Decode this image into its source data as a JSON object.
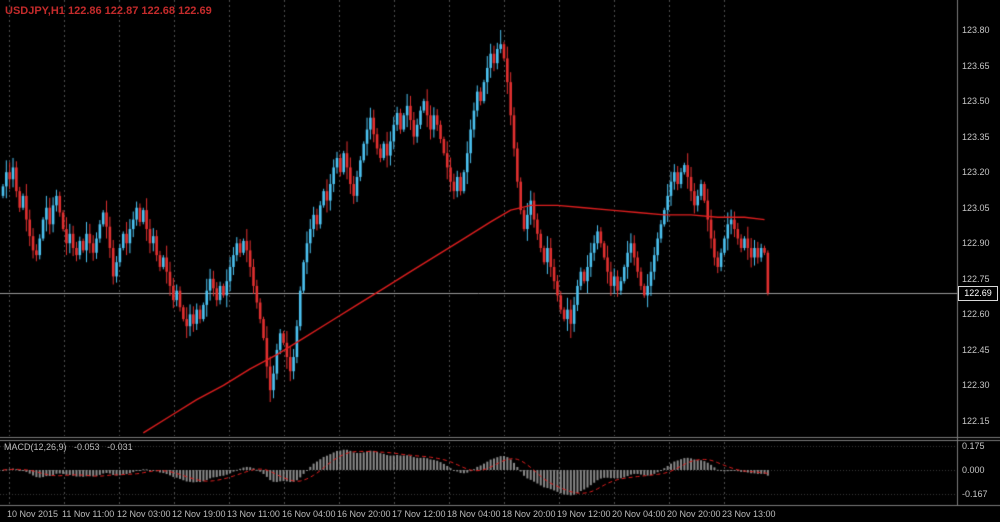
{
  "header": {
    "readout": "USDJPY,H1 122.86 122.87 122.68 122.69",
    "symbol": "USDJPY",
    "timeframe": "H1",
    "open": "122.86",
    "high": "122.87",
    "low": "122.68",
    "close": "122.69"
  },
  "colors": {
    "background": "#000000",
    "bull": "#4cc2f1",
    "bear": "#e23030",
    "ma_line": "#e01f1f",
    "grid": "#4f4f4f",
    "dotted_level": "#3a3a3a",
    "axis_text": "#c6c6c6",
    "header_text": "#c42b2b",
    "histogram": "#8a8a8a",
    "signal_line": "#e01f1f",
    "price_line": "#9a9a9a",
    "separator": "#7b7b7b"
  },
  "chart_data": {
    "type": "candlestick",
    "symbol": "USDJPY",
    "timeframe": "H1",
    "title": "USDJPY,H1",
    "current_price": "122.69",
    "price_line_value": 122.69,
    "y_ticks": [
      "123.80",
      "123.65",
      "123.50",
      "123.35",
      "123.20",
      "123.05",
      "122.90",
      "122.75",
      "122.60",
      "122.45",
      "122.30",
      "122.15"
    ],
    "y_range": [
      122.15,
      123.8
    ],
    "x_labels": [
      "10 Nov 2015",
      "11 Nov 11:00",
      "12 Nov 03:00",
      "12 Nov 19:00",
      "13 Nov 11:00",
      "16 Nov 04:00",
      "16 Nov 20:00",
      "17 Nov 12:00",
      "18 Nov 04:00",
      "18 Nov 20:00",
      "19 Nov 12:00",
      "20 Nov 04:00",
      "20 Nov 20:00",
      "23 Nov 13:00"
    ],
    "closes": [
      123.14,
      123.2,
      123.17,
      123.22,
      123.12,
      123.05,
      123.1,
      123.0,
      122.93,
      122.87,
      122.85,
      122.92,
      123.0,
      123.05,
      122.98,
      123.06,
      123.1,
      123.03,
      122.96,
      122.9,
      122.94,
      122.88,
      122.85,
      122.91,
      122.87,
      122.94,
      122.9,
      122.86,
      122.92,
      122.98,
      123.03,
      122.97,
      122.88,
      122.76,
      122.82,
      122.88,
      122.94,
      122.9,
      122.96,
      123.0,
      123.05,
      122.99,
      123.04,
      122.96,
      122.9,
      122.93,
      122.85,
      122.8,
      122.84,
      122.78,
      122.72,
      122.66,
      122.7,
      122.63,
      122.58,
      122.55,
      122.6,
      122.56,
      122.62,
      122.58,
      122.64,
      122.7,
      122.75,
      122.71,
      122.66,
      122.72,
      122.68,
      122.74,
      122.8,
      122.85,
      122.9,
      122.86,
      122.91,
      122.87,
      122.8,
      122.72,
      122.65,
      122.58,
      122.5,
      122.38,
      122.28,
      122.35,
      122.45,
      122.52,
      122.48,
      122.42,
      122.36,
      122.42,
      122.55,
      122.7,
      122.82,
      122.9,
      122.96,
      123.02,
      122.98,
      123.06,
      123.12,
      123.08,
      123.15,
      123.22,
      123.26,
      123.2,
      123.28,
      123.22,
      123.15,
      123.1,
      123.18,
      123.25,
      123.32,
      123.38,
      123.43,
      123.36,
      123.3,
      123.26,
      123.32,
      123.27,
      123.33,
      123.4,
      123.45,
      123.38,
      123.44,
      123.48,
      123.42,
      123.35,
      123.4,
      123.46,
      123.5,
      123.44,
      123.38,
      123.44,
      123.4,
      123.34,
      123.28,
      123.22,
      123.16,
      123.12,
      123.18,
      123.12,
      123.2,
      123.28,
      123.38,
      123.46,
      123.54,
      123.5,
      123.58,
      123.64,
      123.7,
      123.66,
      123.72,
      123.74,
      123.68,
      123.58,
      123.44,
      123.3,
      123.16,
      123.04,
      122.96,
      123.02,
      123.08,
      123.0,
      122.94,
      122.88,
      122.82,
      122.88,
      122.8,
      122.74,
      122.68,
      122.62,
      122.58,
      122.62,
      122.56,
      122.64,
      122.72,
      122.78,
      122.74,
      122.8,
      122.86,
      122.9,
      122.95,
      122.9,
      122.84,
      122.78,
      122.72,
      122.76,
      122.7,
      122.74,
      122.8,
      122.86,
      122.9,
      122.84,
      122.78,
      122.72,
      122.68,
      122.72,
      122.78,
      122.85,
      122.92,
      122.98,
      123.04,
      123.1,
      123.16,
      123.2,
      123.15,
      123.2,
      123.23,
      123.18,
      123.12,
      123.06,
      123.1,
      123.15,
      123.08,
      123.0,
      122.92,
      122.84,
      122.8,
      122.86,
      122.92,
      122.98,
      123.0,
      122.96,
      122.92,
      122.88,
      122.92,
      122.88,
      122.84,
      122.88,
      122.84,
      122.88,
      122.86,
      122.69
    ],
    "specials": [
      {
        "bar": 3,
        "high": 123.26
      },
      {
        "bar": 80,
        "low": 122.23
      },
      {
        "bar": 149,
        "high": 123.8
      },
      {
        "bar": 170,
        "low": 122.5
      },
      {
        "bar": 229,
        "high": 122.87,
        "low": 122.68
      }
    ],
    "last_candle": {
      "open": 122.86,
      "high": 122.87,
      "low": 122.68,
      "close": 122.69
    },
    "ma_points": [
      [
        42,
        122.1
      ],
      [
        50,
        122.17
      ],
      [
        58,
        122.24
      ],
      [
        66,
        122.3
      ],
      [
        74,
        122.37
      ],
      [
        82,
        122.43
      ],
      [
        90,
        122.5
      ],
      [
        98,
        122.57
      ],
      [
        106,
        122.64
      ],
      [
        114,
        122.71
      ],
      [
        122,
        122.78
      ],
      [
        130,
        122.85
      ],
      [
        138,
        122.92
      ],
      [
        146,
        122.99
      ],
      [
        152,
        123.04
      ],
      [
        158,
        123.06
      ],
      [
        166,
        123.06
      ],
      [
        174,
        123.05
      ],
      [
        182,
        123.04
      ],
      [
        190,
        123.03
      ],
      [
        198,
        123.02
      ],
      [
        206,
        123.02
      ],
      [
        214,
        123.01
      ],
      [
        222,
        123.01
      ],
      [
        228,
        123.0
      ]
    ],
    "macd": {
      "label": "MACD(12,26,9)",
      "main_value": "-0.053",
      "signal_value": "-0.031",
      "fast": 12,
      "slow": 26,
      "signal": 9,
      "ticks": [
        "0.175",
        "0.000",
        "-0.167"
      ]
    }
  }
}
